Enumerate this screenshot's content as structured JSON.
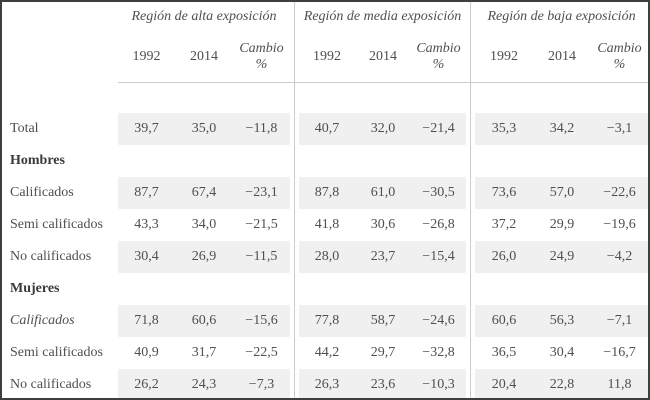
{
  "table": {
    "groups": [
      {
        "title": "Región de alta exposición"
      },
      {
        "title": "Región de media exposición"
      },
      {
        "title": "Región de baja exposición"
      }
    ],
    "subheader": {
      "year1": "1992",
      "year2": "2014",
      "change_line1": "Cambio",
      "change_line2": "%"
    },
    "rows": [
      {
        "label": "Total",
        "variant": "",
        "shaded": true,
        "values": [
          "39,7",
          "35,0",
          "−11,8",
          "40,7",
          "32,0",
          "−21,4",
          "35,3",
          "34,2",
          "−3,1"
        ]
      },
      {
        "label": "Hombres",
        "variant": "section",
        "shaded": false,
        "values": []
      },
      {
        "label": "Calificados",
        "variant": "",
        "shaded": true,
        "values": [
          "87,7",
          "67,4",
          "−23,1",
          "87,8",
          "61,0",
          "−30,5",
          "73,6",
          "57,0",
          "−22,6"
        ]
      },
      {
        "label": "Semi calificados",
        "variant": "",
        "shaded": false,
        "values": [
          "43,3",
          "34,0",
          "−21,5",
          "41,8",
          "30,6",
          "−26,8",
          "37,2",
          "29,9",
          "−19,6"
        ]
      },
      {
        "label": "No calificados",
        "variant": "",
        "shaded": true,
        "values": [
          "30,4",
          "26,9",
          "−11,5",
          "28,0",
          "23,7",
          "−15,4",
          "26,0",
          "24,9",
          "−4,2"
        ]
      },
      {
        "label": "Mujeres",
        "variant": "section",
        "shaded": false,
        "values": []
      },
      {
        "label": "Calificados",
        "variant": "italic",
        "shaded": true,
        "values": [
          "71,8",
          "60,6",
          "−15,6",
          "77,8",
          "58,7",
          "−24,6",
          "60,6",
          "56,3",
          "−7,1"
        ]
      },
      {
        "label": "Semi calificados",
        "variant": "",
        "shaded": false,
        "values": [
          "40,9",
          "31,7",
          "−22,5",
          "44,2",
          "29,7",
          "−32,8",
          "36,5",
          "30,4",
          "−16,7"
        ]
      },
      {
        "label": "No calificados",
        "variant": "",
        "shaded": true,
        "values": [
          "26,2",
          "24,3",
          "−7,3",
          "26,3",
          "23,6",
          "−10,3",
          "20,4",
          "22,8",
          "11,8"
        ]
      }
    ],
    "colors": {
      "outer_border": "#3f3f3f",
      "rule": "#cbcbcb",
      "shade": "#f0f0f0",
      "text": "#4f4f4f"
    }
  }
}
